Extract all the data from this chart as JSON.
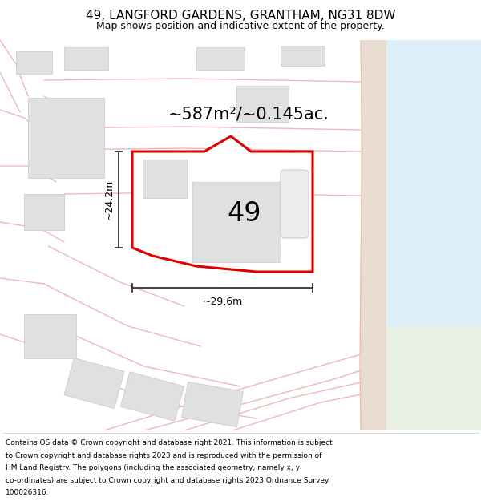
{
  "title": "49, LANGFORD GARDENS, GRANTHAM, NG31 8DW",
  "subtitle": "Map shows position and indicative extent of the property.",
  "footer_lines": [
    "Contains OS data © Crown copyright and database right 2021. This information is subject to Crown copyright and database rights 2023 and is reproduced with the permission of",
    "HM Land Registry. The polygons (including the associated geometry, namely x, y co-ordinates) are subject to Crown copyright and database rights 2023 Ordnance Survey",
    "100026316."
  ],
  "area_label": "~587m²/~0.145ac.",
  "width_label": "~29.6m",
  "height_label": "~24.2m",
  "property_number": "49",
  "bg_color": "#f8f8f8",
  "water_color": "#dceef8",
  "water2_color": "#e8f0e4",
  "road_strip_color": "#e8ddd0",
  "road_color": "#f0b8b8",
  "building_color": "#e0e0e0",
  "building_edge": "#c8c8c8",
  "property_fill": "#ffffff",
  "property_edge": "#dd0000",
  "property_lw": 2.2,
  "dim_color": "#333333",
  "title_fs": 11,
  "subtitle_fs": 9,
  "footer_fs": 6.5,
  "area_fs": 15,
  "number_fs": 24,
  "dim_fs": 9
}
